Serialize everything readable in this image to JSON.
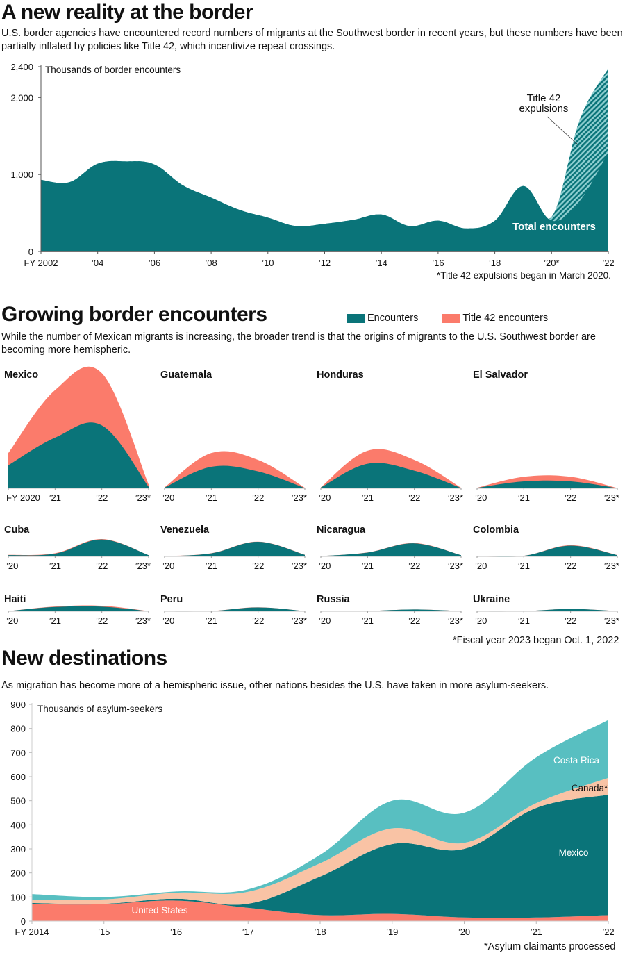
{
  "colors": {
    "encounters": "#0a7479",
    "title42": "#fb7b6b",
    "axis": "#333333",
    "costa_rica": "#58bfc1",
    "canada": "#f9c3a5",
    "mexico": "#0a7479",
    "united_states": "#fb7b6b",
    "hatch_light": "#8fcfd1"
  },
  "section1": {
    "title": "A new reality at the border",
    "dek": "U.S. border agencies have encountered record numbers of migrants at the Southwest border in recent years, but these numbers have been partially inflated by policies like Title 42, which incentivize repeat crossings.",
    "footnote": "*Title 42 expulsions began in March 2020."
  },
  "section2": {
    "title": "Growing border encounters",
    "dek": "While the number of Mexican migrants is increasing, the broader trend is that the origins of migrants to the U.S. Southwest border are becoming more hemispheric.",
    "legend": [
      {
        "label": "Encounters",
        "color_key": "encounters"
      },
      {
        "label": "Title 42 encounters",
        "color_key": "title42"
      }
    ],
    "footnote": "*Fiscal year 2023 began Oct. 1, 2022"
  },
  "section3": {
    "title": "New destinations",
    "dek": "As migration has become more of a hemispheric issue, other nations besides the U.S. have taken in more asylum-seekers.",
    "footnote": "*Asylum claimants processed"
  },
  "chart_data": [
    {
      "type": "area",
      "title": "A new reality at the border",
      "ylabel": "Thousands of border encounters",
      "xlabel": "",
      "ylim": [
        0,
        2400
      ],
      "yticks": [
        0,
        1000,
        2000,
        2400
      ],
      "ytick_labels": [
        "0",
        "1,000",
        "2,000",
        "2,400"
      ],
      "x": [
        2002,
        2003,
        2004,
        2005,
        2006,
        2007,
        2008,
        2009,
        2010,
        2011,
        2012,
        2013,
        2014,
        2015,
        2016,
        2017,
        2018,
        2019,
        2020,
        2021,
        2022
      ],
      "xtick_values": [
        2002,
        2004,
        2006,
        2008,
        2010,
        2012,
        2014,
        2016,
        2018,
        2020,
        2022
      ],
      "xtick_labels": [
        "FY 2002",
        "’04",
        "’06",
        "’08",
        "’10",
        "’12",
        "’14",
        "’16",
        "’18",
        "’20*",
        "’22"
      ],
      "series": [
        {
          "name": "Total encounters",
          "values": [
            930,
            900,
            1140,
            1170,
            1130,
            860,
            700,
            540,
            440,
            330,
            360,
            410,
            480,
            330,
            400,
            300,
            400,
            850,
            400,
            660,
            1290
          ]
        },
        {
          "name": "Title 42 expulsions",
          "values": [
            0,
            0,
            0,
            0,
            0,
            0,
            0,
            0,
            0,
            0,
            0,
            0,
            0,
            0,
            0,
            0,
            0,
            0,
            50,
            1060,
            1090
          ]
        }
      ],
      "annotations": [
        "Title 42 expulsions",
        "Total encounters"
      ],
      "grid": false
    },
    {
      "type": "area",
      "title": "Growing border encounters",
      "x": [
        2020,
        2021,
        2022,
        2023
      ],
      "xtick_labels_first": [
        "FY 2020",
        "’21",
        "’22",
        "’23*"
      ],
      "xtick_labels": [
        "’20",
        "’21",
        "’22",
        "’23*"
      ],
      "shared_ymax": 760,
      "panels": [
        {
          "name": "Mexico",
          "encounters": [
            150,
            330,
            410,
            10
          ],
          "title42": [
            80,
            310,
            340,
            15
          ]
        },
        {
          "name": "Guatemala",
          "encounters": [
            5,
            140,
            110,
            2
          ],
          "title42": [
            2,
            90,
            75,
            2
          ]
        },
        {
          "name": "Honduras",
          "encounters": [
            5,
            160,
            115,
            2
          ],
          "title42": [
            2,
            85,
            70,
            2
          ]
        },
        {
          "name": "El Salvador",
          "encounters": [
            3,
            45,
            45,
            1
          ],
          "title42": [
            1,
            30,
            30,
            1
          ]
        },
        {
          "name": "Cuba",
          "encounters": [
            8,
            18,
            110,
            8
          ],
          "title42": [
            2,
            3,
            3,
            0
          ]
        },
        {
          "name": "Venezuela",
          "encounters": [
            2,
            20,
            95,
            10
          ],
          "title42": [
            0,
            1,
            1,
            1
          ]
        },
        {
          "name": "Nicaragua",
          "encounters": [
            2,
            25,
            85,
            8
          ],
          "title42": [
            0,
            1,
            2,
            0
          ]
        },
        {
          "name": "Colombia",
          "encounters": [
            1,
            4,
            70,
            8
          ],
          "title42": [
            0,
            0,
            3,
            1
          ]
        },
        {
          "name": "Haiti",
          "encounters": [
            1,
            28,
            30,
            1
          ],
          "title42": [
            0,
            3,
            6,
            0
          ]
        },
        {
          "name": "Peru",
          "encounters": [
            0,
            2,
            25,
            1
          ],
          "title42": [
            0,
            0,
            1,
            0
          ]
        },
        {
          "name": "Russia",
          "encounters": [
            0,
            2,
            12,
            1
          ],
          "title42": [
            0,
            0,
            0,
            0
          ]
        },
        {
          "name": "Ukraine",
          "encounters": [
            0,
            1,
            15,
            1
          ],
          "title42": [
            0,
            0,
            0,
            0
          ]
        }
      ],
      "legend": [
        "Encounters",
        "Title 42 encounters"
      ],
      "legend_position": "top-right"
    },
    {
      "type": "area",
      "title": "New destinations",
      "ylabel": "Thousands of asylum-seekers",
      "ylim": [
        0,
        900
      ],
      "yticks": [
        0,
        100,
        200,
        300,
        400,
        500,
        600,
        700,
        800,
        900
      ],
      "x": [
        2014,
        2015,
        2016,
        2017,
        2018,
        2019,
        2020,
        2021,
        2022
      ],
      "xtick_labels": [
        "FY 2014",
        "’15",
        "’16",
        "’17",
        "’18",
        "’19",
        "’20",
        "’21",
        "’22"
      ],
      "stacked": true,
      "series": [
        {
          "name": "United States",
          "values": [
            70,
            70,
            85,
            55,
            25,
            30,
            15,
            15,
            25
          ]
        },
        {
          "name": "Mexico",
          "values": [
            5,
            2,
            8,
            17,
            160,
            290,
            285,
            455,
            500
          ]
        },
        {
          "name": "Canada*",
          "values": [
            12,
            18,
            25,
            50,
            55,
            65,
            25,
            20,
            70
          ]
        },
        {
          "name": "Costa Rica",
          "values": [
            25,
            10,
            5,
            10,
            35,
            115,
            125,
            190,
            240
          ]
        }
      ],
      "annotations": [
        "United States",
        "Mexico",
        "Canada*",
        "Costa Rica"
      ],
      "grid": false
    }
  ]
}
